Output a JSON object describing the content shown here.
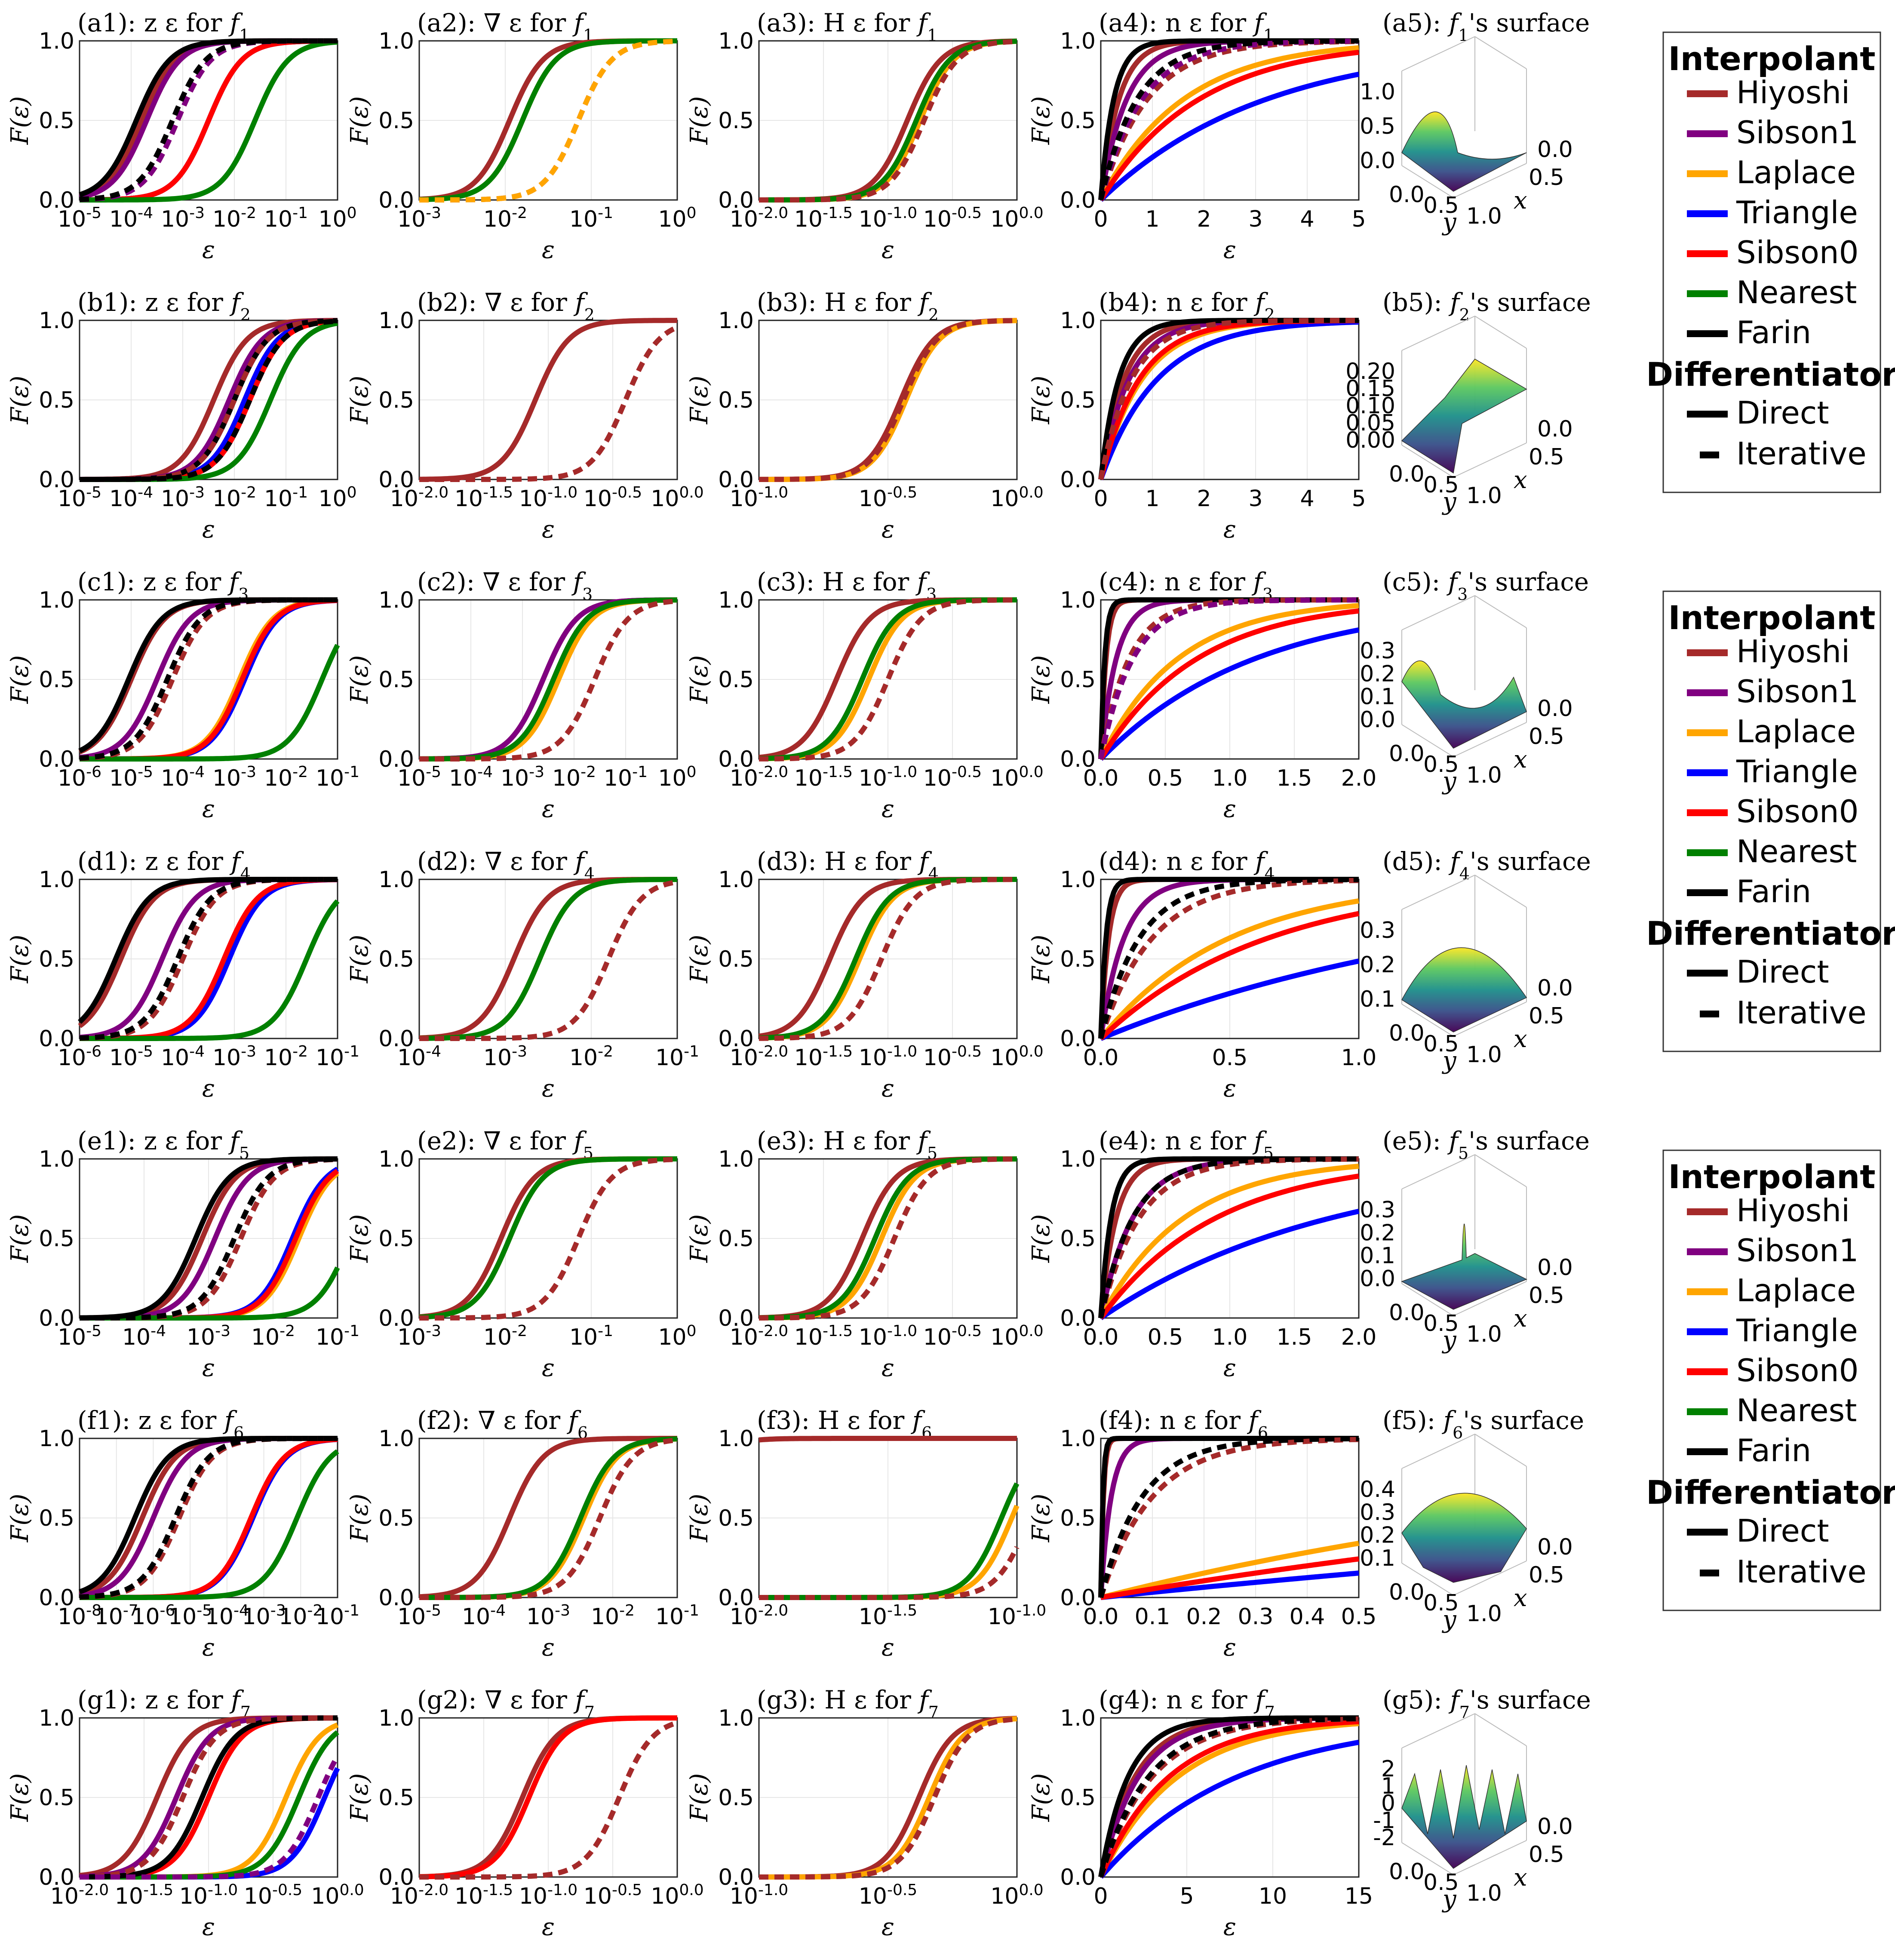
{
  "rows": [
    "a",
    "b",
    "c",
    "d",
    "e",
    "f",
    "g"
  ],
  "functions": [
    "f1",
    "f2",
    "f3",
    "f4",
    "f5",
    "f6",
    "f7"
  ],
  "column_titles": {
    "c1": "z ε for",
    "c2": "∇ ε for",
    "c3": "H ε for",
    "c4": "n ε for",
    "c5": "'s surface"
  },
  "axis_labels": {
    "x": "ε",
    "y": "F(ε)",
    "surf_x": "x",
    "surf_y": "y"
  },
  "colors": {
    "Hiyoshi": "#a52a2a",
    "Sibson1": "#800080",
    "Laplace": "#ffa500",
    "Triangle": "#0000ff",
    "Sibson0": "#ff0000",
    "Nearest": "#008000",
    "Farin": "#000000"
  },
  "legend": {
    "interpolant_title": "Interpolant",
    "interpolants": [
      "Hiyoshi",
      "Sibson1",
      "Laplace",
      "Triangle",
      "Sibson0",
      "Nearest",
      "Farin"
    ],
    "differentiator_title": "Differentiator",
    "differentiators": [
      "Direct",
      "Iterative"
    ]
  },
  "chart_data": [
    {
      "panel": "a1",
      "type": "line",
      "scale": "log",
      "xlim": [
        -5,
        0
      ],
      "xticks": [
        "10-5",
        "10-4",
        "10-3",
        "10-2",
        "10-1",
        "100"
      ],
      "ylim": [
        0,
        1
      ],
      "yticks": [
        "0.0",
        "0.5",
        "1.0"
      ],
      "medians": {
        "Hiyoshi": -3.8,
        "Sibson1": -3.7,
        "Laplace": -2.5,
        "Triangle": -2.5,
        "Sibson0": -2.5,
        "Nearest": -1.6,
        "Farin": -3.9
      },
      "medians_iter": {
        "Hiyoshi": -3.1,
        "Sibson1": -3.1,
        "Farin": -3.2
      }
    },
    {
      "panel": "a2",
      "type": "line",
      "scale": "log",
      "xlim": [
        -3,
        0
      ],
      "xticks": [
        "10-3",
        "10-2",
        "10-1",
        "100"
      ],
      "ylim": [
        0,
        1
      ],
      "yticks": [
        "0.0",
        "0.5",
        "1.0"
      ],
      "medians": {
        "Hiyoshi": -1.95,
        "Laplace": -1.8,
        "Nearest": -1.8
      },
      "medians_iter": {
        "Hiyoshi": -1.15,
        "Laplace": -1.15
      }
    },
    {
      "panel": "a3",
      "type": "line",
      "scale": "log",
      "xlim": [
        -2,
        0
      ],
      "xticks": [
        "10-2.0",
        "10-1.5",
        "10-1.0",
        "10-0.5",
        "100.0"
      ],
      "ylim": [
        0,
        1
      ],
      "yticks": [
        "0.0",
        "0.5",
        "1.0"
      ],
      "medians": {
        "Hiyoshi": -0.85,
        "Laplace": -0.75,
        "Nearest": -0.78
      },
      "medians_iter": {
        "Hiyoshi": -0.72
      }
    },
    {
      "panel": "a4",
      "type": "line",
      "scale": "lin",
      "xlim": [
        0,
        5
      ],
      "xticks": [
        "0",
        "1",
        "2",
        "3",
        "4",
        "5"
      ],
      "ylim": [
        0,
        1
      ],
      "yticks": [
        "0.0",
        "0.5",
        "1.0"
      ],
      "scale_param": {
        "Hiyoshi": 0.35,
        "Sibson1": 0.5,
        "Laplace": 1.6,
        "Triangle": 3.2,
        "Sibson0": 1.9,
        "Farin": 0.25
      },
      "scale_param_iter": {
        "Hiyoshi": 0.9,
        "Sibson1": 0.8,
        "Farin": 0.7
      }
    },
    {
      "panel": "a5",
      "type": "surface",
      "fn": "f1",
      "zticks": [
        "0.0",
        "0.5",
        "1.0"
      ],
      "xyticks": [
        "0.0",
        "0.5",
        "1.0"
      ]
    },
    {
      "panel": "b1",
      "type": "line",
      "scale": "log",
      "xlim": [
        -5,
        0
      ],
      "xticks": [
        "10-5",
        "10-4",
        "10-3",
        "10-2",
        "10-1",
        "100"
      ],
      "ylim": [
        0,
        1
      ],
      "yticks": [
        "0.0",
        "0.5",
        "1.0"
      ],
      "medians": {
        "Hiyoshi": -2.4,
        "Sibson1": -2.1,
        "Laplace": -1.8,
        "Triangle": -1.8,
        "Sibson0": -1.7,
        "Nearest": -1.3,
        "Farin": -2.0
      },
      "medians_iter": {
        "Hiyoshi": -2.0,
        "Farin": -1.7
      }
    },
    {
      "panel": "b2",
      "type": "line",
      "scale": "log",
      "xlim": [
        -2,
        0
      ],
      "xticks": [
        "10-2.0",
        "10-1.5",
        "10-1.0",
        "10-0.5",
        "100.0"
      ],
      "ylim": [
        0,
        1
      ],
      "yticks": [
        "0.0",
        "0.5",
        "1.0"
      ],
      "medians": {
        "Hiyoshi": -1.1
      },
      "medians_iter": {
        "Hiyoshi": -0.4
      }
    },
    {
      "panel": "b3",
      "type": "line",
      "scale": "log",
      "xlim": [
        -1,
        0
      ],
      "xticks": [
        "10-1.0",
        "10-0.5",
        "100.0"
      ],
      "ylim": [
        0,
        1
      ],
      "yticks": [
        "0.0",
        "0.5",
        "1.0"
      ],
      "medians": {
        "Hiyoshi": -0.45,
        "Laplace": -0.43
      },
      "medians_iter": {
        "Hiyoshi": -0.44
      }
    },
    {
      "panel": "b4",
      "type": "line",
      "scale": "lin",
      "xlim": [
        0,
        5
      ],
      "xticks": [
        "0",
        "1",
        "2",
        "3",
        "4",
        "5"
      ],
      "ylim": [
        0,
        1
      ],
      "yticks": [
        "0.0",
        "0.5",
        "1.0"
      ],
      "scale_param": {
        "Hiyoshi": 0.45,
        "Sibson1": 0.55,
        "Laplace": 0.8,
        "Triangle": 1.1,
        "Sibson0": 0.75,
        "Farin": 0.35
      },
      "scale_param_iter": {
        "Hiyoshi": 0.6
      }
    },
    {
      "panel": "b5",
      "type": "surface",
      "fn": "f2",
      "zticks": [
        "0.00",
        "0.05",
        "0.10",
        "0.15",
        "0.20"
      ],
      "xyticks": [
        "0.0",
        "0.5",
        "1.0"
      ]
    },
    {
      "panel": "c1",
      "type": "line",
      "scale": "log",
      "xlim": [
        -6,
        -1
      ],
      "xticks": [
        "10-6",
        "10-5",
        "10-4",
        "10-3",
        "10-2",
        "10-1"
      ],
      "ylim": [
        0,
        1
      ],
      "yticks": [
        "0.0",
        "0.5",
        "1.0"
      ],
      "medians": {
        "Hiyoshi": -5.0,
        "Sibson1": -4.5,
        "Laplace": -2.9,
        "Triangle": -2.8,
        "Sibson0": -2.85,
        "Nearest": -1.3,
        "Farin": -5.05
      },
      "medians_iter": {
        "Hiyoshi": -4.2,
        "Farin": -4.3
      }
    },
    {
      "panel": "c2",
      "type": "line",
      "scale": "log",
      "xlim": [
        -5,
        0
      ],
      "xticks": [
        "10-5",
        "10-4",
        "10-3",
        "10-2",
        "10-1",
        "100"
      ],
      "ylim": [
        0,
        1
      ],
      "yticks": [
        "0.0",
        "0.5",
        "1.0"
      ],
      "medians": {
        "Hiyoshi": -2.6,
        "Sibson1": -2.6,
        "Laplace": -2.3,
        "Nearest": -2.4
      },
      "medians_iter": {
        "Hiyoshi": -1.6
      }
    },
    {
      "panel": "c3",
      "type": "line",
      "scale": "log",
      "xlim": [
        -2,
        0
      ],
      "xticks": [
        "10-2.0",
        "10-1.5",
        "10-1.0",
        "10-0.5",
        "100.0"
      ],
      "ylim": [
        0,
        1
      ],
      "yticks": [
        "0.0",
        "0.5",
        "1.0"
      ],
      "medians": {
        "Hiyoshi": -1.4,
        "Laplace": -1.15,
        "Nearest": -1.2
      },
      "medians_iter": {
        "Hiyoshi": -1.0
      }
    },
    {
      "panel": "c4",
      "type": "line",
      "scale": "lin",
      "xlim": [
        0,
        2
      ],
      "xticks": [
        "0.0",
        "0.5",
        "1.0",
        "1.5",
        "2.0"
      ],
      "ylim": [
        0,
        1
      ],
      "yticks": [
        "0.0",
        "0.5",
        "1.0"
      ],
      "scale_param": {
        "Hiyoshi": 0.04,
        "Sibson1": 0.12,
        "Laplace": 0.6,
        "Triangle": 1.2,
        "Sibson0": 0.75,
        "Farin": 0.03
      },
      "scale_param_iter": {
        "Hiyoshi": 0.22,
        "Sibson1": 0.25
      }
    },
    {
      "panel": "c5",
      "type": "surface",
      "fn": "f3",
      "zticks": [
        "0.0",
        "0.1",
        "0.2",
        "0.3"
      ],
      "xyticks": [
        "0.0",
        "0.5",
        "1.0"
      ]
    },
    {
      "panel": "d1",
      "type": "line",
      "scale": "log",
      "xlim": [
        -6,
        -1
      ],
      "xticks": [
        "10-6",
        "10-5",
        "10-4",
        "10-3",
        "10-2",
        "10-1"
      ],
      "ylim": [
        0,
        1
      ],
      "yticks": [
        "0.0",
        "0.5",
        "1.0"
      ],
      "medians": {
        "Hiyoshi": -5.2,
        "Sibson1": -4.4,
        "Laplace": -3.15,
        "Triangle": -3.1,
        "Sibson0": -3.2,
        "Nearest": -1.6,
        "Farin": -5.3
      },
      "medians_iter": {
        "Hiyoshi": -4.0,
        "Farin": -4.1
      }
    },
    {
      "panel": "d2",
      "type": "line",
      "scale": "log",
      "xlim": [
        -4,
        -1
      ],
      "xticks": [
        "10-4",
        "10-3",
        "10-2",
        "10-1"
      ],
      "ylim": [
        0,
        1
      ],
      "yticks": [
        "0.0",
        "0.5",
        "1.0"
      ],
      "medians": {
        "Hiyoshi": -2.9,
        "Laplace": -2.6,
        "Nearest": -2.6
      },
      "medians_iter": {
        "Hiyoshi": -1.8
      }
    },
    {
      "panel": "d3",
      "type": "line",
      "scale": "log",
      "xlim": [
        -2,
        0
      ],
      "xticks": [
        "10-2.0",
        "10-1.5",
        "10-1.0",
        "10-0.5",
        "100.0"
      ],
      "ylim": [
        0,
        1
      ],
      "yticks": [
        "0.0",
        "0.5",
        "1.0"
      ],
      "medians": {
        "Hiyoshi": -1.45,
        "Laplace": -1.22,
        "Nearest": -1.25
      },
      "medians_iter": {
        "Hiyoshi": -1.05
      }
    },
    {
      "panel": "d4",
      "type": "line",
      "scale": "lin",
      "xlim": [
        0,
        1
      ],
      "xticks": [
        "0.0",
        "0.5",
        "1.0"
      ],
      "ylim": [
        0,
        1
      ],
      "yticks": [
        "0.0",
        "0.5",
        "1.0"
      ],
      "scale_param": {
        "Hiyoshi": 0.03,
        "Sibson1": 0.09,
        "Laplace": 0.5,
        "Triangle": 1.5,
        "Sibson0": 0.65,
        "Farin": 0.02
      },
      "scale_param_iter": {
        "Hiyoshi": 0.2,
        "Farin": 0.15
      }
    },
    {
      "panel": "d5",
      "type": "surface",
      "fn": "f4",
      "zticks": [
        "0.1",
        "0.2",
        "0.3"
      ],
      "xyticks": [
        "0.0",
        "0.5",
        "1.0"
      ]
    },
    {
      "panel": "e1",
      "type": "line",
      "scale": "log",
      "xlim": [
        -5,
        -1
      ],
      "xticks": [
        "10-5",
        "10-4",
        "10-3",
        "10-2",
        "10-1"
      ],
      "ylim": [
        0,
        1
      ],
      "yticks": [
        "0.0",
        "0.5",
        "1.0"
      ],
      "medians": {
        "Hiyoshi": -3.1,
        "Sibson1": -2.9,
        "Laplace": -1.6,
        "Triangle": -1.7,
        "Sibson0": -1.65,
        "Nearest": -0.8,
        "Farin": -3.2
      },
      "medians_iter": {
        "Hiyoshi": -2.5,
        "Farin": -2.6
      }
    },
    {
      "panel": "e2",
      "type": "line",
      "scale": "log",
      "xlim": [
        -3,
        0
      ],
      "xticks": [
        "10-3",
        "10-2",
        "10-1",
        "100"
      ],
      "ylim": [
        0,
        1
      ],
      "yticks": [
        "0.0",
        "0.5",
        "1.0"
      ],
      "medians": {
        "Hiyoshi": -2.05,
        "Laplace": -1.95,
        "Nearest": -1.95
      },
      "medians_iter": {
        "Hiyoshi": -1.15
      }
    },
    {
      "panel": "e3",
      "type": "line",
      "scale": "log",
      "xlim": [
        -2,
        0
      ],
      "xticks": [
        "10-2.0",
        "10-1.5",
        "10-1.0",
        "10-0.5",
        "100.0"
      ],
      "ylim": [
        0,
        1
      ],
      "yticks": [
        "0.0",
        "0.5",
        "1.0"
      ],
      "medians": {
        "Hiyoshi": -1.2,
        "Laplace": -1.05,
        "Nearest": -1.1
      },
      "medians_iter": {
        "Hiyoshi": -0.95
      }
    },
    {
      "panel": "e4",
      "type": "line",
      "scale": "lin",
      "xlim": [
        0,
        2
      ],
      "xticks": [
        "0.0",
        "0.5",
        "1.0",
        "1.5",
        "2.0"
      ],
      "ylim": [
        0,
        1
      ],
      "yticks": [
        "0.0",
        "0.5",
        "1.0"
      ],
      "scale_param": {
        "Hiyoshi": 0.12,
        "Sibson1": 0.25,
        "Laplace": 0.65,
        "Triangle": 1.8,
        "Sibson0": 0.9,
        "Farin": 0.08
      },
      "scale_param_iter": {
        "Hiyoshi": 0.3,
        "Farin": 0.25
      }
    },
    {
      "panel": "e5",
      "type": "surface",
      "fn": "f5",
      "zticks": [
        "0.0",
        "0.1",
        "0.2",
        "0.3"
      ],
      "xyticks": [
        "0.0",
        "0.5",
        "1.0"
      ]
    },
    {
      "panel": "f1",
      "type": "line",
      "scale": "log",
      "xlim": [
        -8,
        -1
      ],
      "xticks": [
        "10-8",
        "10-7",
        "10-6",
        "10-5",
        "10-4",
        "10-3",
        "10-2",
        "10-1"
      ],
      "ylim": [
        0,
        1
      ],
      "yticks": [
        "0.0",
        "0.5",
        "1.0"
      ],
      "medians": {
        "Hiyoshi": -6.3,
        "Sibson1": -6.0,
        "Laplace": -3.3,
        "Triangle": -3.3,
        "Sibson0": -3.35,
        "Nearest": -2.1,
        "Farin": -6.5
      },
      "medians_iter": {
        "Hiyoshi": -5.3,
        "Farin": -5.4
      }
    },
    {
      "panel": "f2",
      "type": "line",
      "scale": "log",
      "xlim": [
        -5,
        -1
      ],
      "xticks": [
        "10-5",
        "10-4",
        "10-3",
        "10-2",
        "10-1"
      ],
      "ylim": [
        0,
        1
      ],
      "yticks": [
        "0.0",
        "0.5",
        "1.0"
      ],
      "medians": {
        "Hiyoshi": -3.6,
        "Laplace": -2.45,
        "Nearest": -2.5
      },
      "medians_iter": {
        "Hiyoshi": -2.2
      }
    },
    {
      "panel": "f3",
      "type": "line",
      "scale": "log",
      "xlim": [
        -2,
        -1
      ],
      "xticks": [
        "10-2.0",
        "10-1.5",
        "10-1.0"
      ],
      "ylim": [
        0,
        1
      ],
      "yticks": [
        "0.0",
        "0.5",
        "1.0"
      ],
      "medians": {
        "Hiyoshi": -2.3,
        "Laplace": -1.02,
        "Nearest": -1.06
      },
      "medians_iter": {
        "Hiyoshi": -0.95
      }
    },
    {
      "panel": "f4",
      "type": "line",
      "scale": "lin",
      "xlim": [
        0,
        0.5
      ],
      "xticks": [
        "0.0",
        "0.1",
        "0.2",
        "0.3",
        "0.4",
        "0.5"
      ],
      "ylim": [
        0,
        1
      ],
      "yticks": [
        "0.0",
        "0.5",
        "1.0"
      ],
      "scale_param": {
        "Hiyoshi": 0.005,
        "Sibson1": 0.02,
        "Laplace": 1.2,
        "Triangle": 3.0,
        "Sibson0": 1.8,
        "Farin": 0.004
      },
      "scale_param_iter": {
        "Hiyoshi": 0.1,
        "Farin": 0.08
      }
    },
    {
      "panel": "f5",
      "type": "surface",
      "fn": "f6",
      "zticks": [
        "0.1",
        "0.2",
        "0.3",
        "0.4"
      ],
      "xyticks": [
        "0.0",
        "0.5",
        "1.0"
      ]
    },
    {
      "panel": "g1",
      "type": "line",
      "scale": "log",
      "xlim": [
        -2,
        0
      ],
      "xticks": [
        "10-2.0",
        "10-1.5",
        "10-1.0",
        "10-0.5",
        "100.0"
      ],
      "ylim": [
        0,
        1
      ],
      "yticks": [
        "0.0",
        "0.5",
        "1.0"
      ],
      "medians": {
        "Hiyoshi": -1.4,
        "Sibson1": -1.25,
        "Laplace": -0.4,
        "Triangle": -0.1,
        "Sibson0": -1.0,
        "Nearest": -0.3,
        "Farin": -1.05
      },
      "medians_iter": {
        "Hiyoshi": -1.2,
        "Sibson1": -0.15
      }
    },
    {
      "panel": "g2",
      "type": "line",
      "scale": "log",
      "xlim": [
        -2,
        0
      ],
      "xticks": [
        "10-2.0",
        "10-1.5",
        "10-1.0",
        "10-0.5",
        "100.0"
      ],
      "ylim": [
        0,
        1
      ],
      "yticks": [
        "0.0",
        "0.5",
        "1.0"
      ],
      "medians": {
        "Hiyoshi": -1.2,
        "Laplace": -1.15,
        "Sibson0": -1.15
      },
      "medians_iter": {
        "Hiyoshi": -0.45
      }
    },
    {
      "panel": "g3",
      "type": "line",
      "scale": "log",
      "xlim": [
        -1,
        0
      ],
      "xticks": [
        "10-1.0",
        "10-0.5",
        "100.0"
      ],
      "ylim": [
        0,
        1
      ],
      "yticks": [
        "0.0",
        "0.5",
        "1.0"
      ],
      "medians": {
        "Hiyoshi": -0.38,
        "Laplace": -0.34
      },
      "medians_iter": {
        "Hiyoshi": -0.32
      }
    },
    {
      "panel": "g4",
      "type": "line",
      "scale": "lin",
      "xlim": [
        0,
        15
      ],
      "xticks": [
        "0",
        "5",
        "10",
        "15"
      ],
      "ylim": [
        0,
        1
      ],
      "yticks": [
        "0.0",
        "0.5",
        "1.0"
      ],
      "scale_param": {
        "Hiyoshi": 2.0,
        "Sibson1": 2.2,
        "Laplace": 4.5,
        "Triangle": 8.0,
        "Sibson0": 4.0,
        "Farin": 1.6
      },
      "scale_param_iter": {
        "Hiyoshi": 3.0,
        "Farin": 2.8
      }
    },
    {
      "panel": "g5",
      "type": "surface",
      "fn": "f7",
      "zticks": [
        "-2",
        "-1",
        "0",
        "1",
        "2"
      ],
      "xyticks": [
        "0.0",
        "0.5",
        "1.0"
      ]
    }
  ]
}
